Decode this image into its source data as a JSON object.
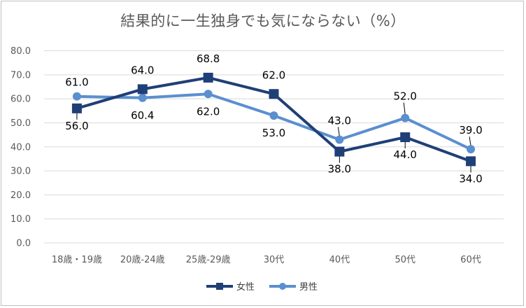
{
  "chart_data": {
    "type": "line",
    "title": "結果的に一生独身でも気にならない（%）",
    "categories": [
      "18歳・19歳",
      "20歳-24歳",
      "25歳-29歳",
      "30代",
      "40代",
      "50代",
      "60代"
    ],
    "y_ticks": [
      "0.0",
      "10.0",
      "20.0",
      "30.0",
      "40.0",
      "50.0",
      "60.0",
      "70.0",
      "80.0"
    ],
    "ylim": [
      0,
      80
    ],
    "grid": true,
    "legend_position": "bottom",
    "series": [
      {
        "name": "女性",
        "marker": "square",
        "color": "#1f3f77",
        "values": [
          56.0,
          64.0,
          68.8,
          62.0,
          38.0,
          44.0,
          34.0
        ],
        "labels": [
          "56.0",
          "64.0",
          "68.8",
          "62.0",
          "38.0",
          "44.0",
          "34.0"
        ]
      },
      {
        "name": "男性",
        "marker": "circle",
        "color": "#5b8fcf",
        "values": [
          61.0,
          60.4,
          62.0,
          53.0,
          43.0,
          52.0,
          39.0
        ],
        "labels": [
          "61.0",
          "60.4",
          "62.0",
          "53.0",
          "43.0",
          "52.0",
          "39.0"
        ]
      }
    ]
  }
}
